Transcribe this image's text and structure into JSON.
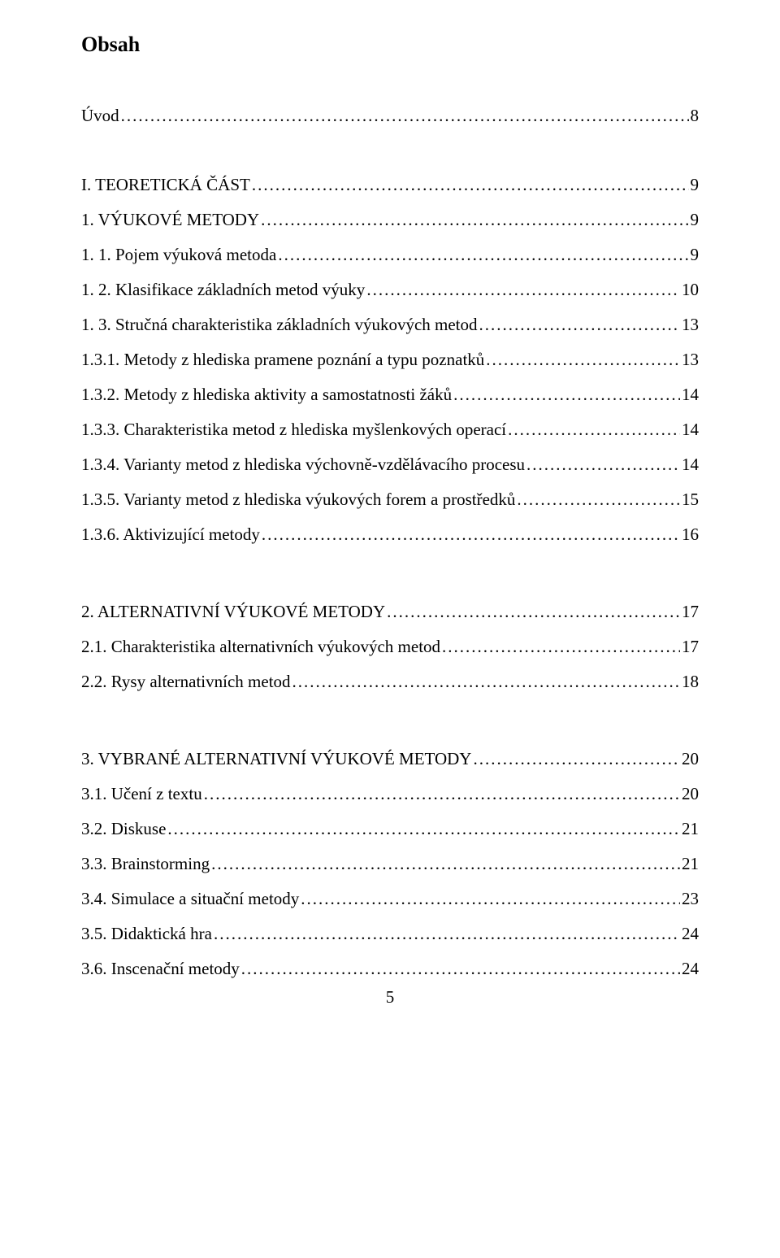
{
  "title": "Obsah",
  "pageNumber": "5",
  "entries": [
    {
      "label": "Úvod",
      "page": "8",
      "spaceAfter": "large"
    },
    {
      "label": "I. TEORETICKÁ ČÁST",
      "page": "9",
      "spaceAfter": "entry"
    },
    {
      "label": "1. VÝUKOVÉ METODY",
      "page": "9",
      "spaceAfter": "entry"
    },
    {
      "label": "1. 1. Pojem výuková metoda",
      "page": "9",
      "spaceAfter": "entry"
    },
    {
      "label": "1. 2. Klasifikace základních metod výuky",
      "page": "10",
      "spaceAfter": "entry"
    },
    {
      "label": "1. 3. Stručná charakteristika základních výukových metod",
      "page": "13",
      "spaceAfter": "entry"
    },
    {
      "label": "1.3.1. Metody z hlediska pramene poznání a typu poznatků",
      "page": "13",
      "spaceAfter": "entry"
    },
    {
      "label": "1.3.2. Metody z hlediska aktivity a samostatnosti žáků",
      "page": "14",
      "spaceAfter": "entry"
    },
    {
      "label": "1.3.3. Charakteristika metod z hlediska myšlenkových operací",
      "page": "14",
      "spaceAfter": "entry"
    },
    {
      "label": "1.3.4. Varianty metod z hlediska výchovně-vzdělávacího procesu",
      "page": "14",
      "spaceAfter": "entry"
    },
    {
      "label": "1.3.5. Varianty metod z hlediska výukových forem a prostředků",
      "page": "15",
      "spaceAfter": "entry"
    },
    {
      "label": "1.3.6. Aktivizující metody",
      "page": "16",
      "spaceAfter": "section"
    },
    {
      "label": "2. ALTERNATIVNÍ VÝUKOVÉ METODY",
      "page": "17",
      "spaceAfter": "entry"
    },
    {
      "label": "2.1. Charakteristika alternativních výukových metod",
      "page": "17",
      "spaceAfter": "entry"
    },
    {
      "label": "2.2. Rysy alternativních metod",
      "page": "18",
      "spaceAfter": "section"
    },
    {
      "label": "3. VYBRANÉ ALTERNATIVNÍ VÝUKOVÉ METODY",
      "page": "20",
      "spaceAfter": "entry"
    },
    {
      "label": "3.1. Učení z textu",
      "page": "20",
      "spaceAfter": "entry"
    },
    {
      "label": "3.2. Diskuse",
      "page": "21",
      "spaceAfter": "entry"
    },
    {
      "label": "3.3. Brainstorming",
      "page": "21",
      "spaceAfter": "entry"
    },
    {
      "label": "3.4. Simulace a situační metody",
      "page": "23",
      "spaceAfter": "entry"
    },
    {
      "label": "3.5. Didaktická hra",
      "page": "24",
      "spaceAfter": "entry"
    },
    {
      "label": "3.6. Inscenační metody",
      "page": "24",
      "spaceAfter": "none"
    }
  ]
}
